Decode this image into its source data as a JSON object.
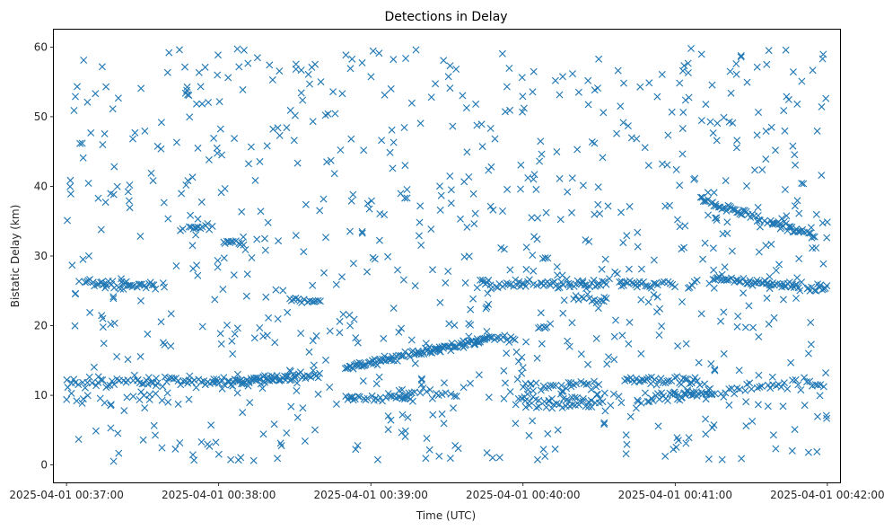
{
  "chart_data": {
    "type": "scatter",
    "title": "Detections in Delay",
    "xlabel": "Time (UTC)",
    "ylabel": "Bistatic Delay (km)",
    "marker": "x",
    "color": "#1f77b4",
    "grid": false,
    "x_axis": {
      "kind": "time",
      "range": [
        "2025-04-01 00:36:55",
        "2025-04-01 00:42:05"
      ],
      "ticks": [
        "2025-04-01 00:37:00",
        "2025-04-01 00:38:00",
        "2025-04-01 00:39:00",
        "2025-04-01 00:40:00",
        "2025-04-01 00:41:00",
        "2025-04-01 00:42:00"
      ]
    },
    "y_axis": {
      "range": [
        -2.5,
        62.5
      ],
      "ticks": [
        0,
        10,
        20,
        30,
        40,
        50,
        60
      ]
    },
    "tracks": [
      {
        "from": [
          "2025-04-01 00:37:00",
          11.8
        ],
        "to": [
          "2025-04-01 00:38:30",
          12.4
        ],
        "step_s": 0.9,
        "jitter": 0.35
      },
      {
        "from": [
          "2025-04-01 00:38:00",
          11.8
        ],
        "to": [
          "2025-04-01 00:38:40",
          13.0
        ],
        "step_s": 0.7,
        "jitter": 0.3
      },
      {
        "from": [
          "2025-04-01 00:38:50",
          14.0
        ],
        "to": [
          "2025-04-01 00:39:45",
          18.0
        ],
        "step_s": 0.5,
        "jitter": 0.25
      },
      {
        "from": [
          "2025-04-01 00:39:40",
          17.5
        ],
        "to": [
          "2025-04-01 00:39:57",
          18.5
        ],
        "step_s": 0.8,
        "jitter": 0.3
      },
      {
        "from": [
          "2025-04-01 00:37:05",
          26.2
        ],
        "to": [
          "2025-04-01 00:37:35",
          25.6
        ],
        "step_s": 0.6,
        "jitter": 0.3
      },
      {
        "from": [
          "2025-04-01 00:37:45",
          34.0
        ],
        "to": [
          "2025-04-01 00:37:58",
          34.2
        ],
        "step_s": 0.7,
        "jitter": 0.2
      },
      {
        "from": [
          "2025-04-01 00:38:02",
          32.0
        ],
        "to": [
          "2025-04-01 00:38:10",
          31.8
        ],
        "step_s": 0.6,
        "jitter": 0.2
      },
      {
        "from": [
          "2025-04-01 00:38:28",
          23.8
        ],
        "to": [
          "2025-04-01 00:38:40",
          23.6
        ],
        "step_s": 0.8,
        "jitter": 0.2
      },
      {
        "from": [
          "2025-04-01 00:38:50",
          9.5
        ],
        "to": [
          "2025-04-01 00:39:17",
          9.6
        ],
        "step_s": 0.8,
        "jitter": 0.3
      },
      {
        "from": [
          "2025-04-01 00:39:10",
          10.5
        ],
        "to": [
          "2025-04-01 00:39:35",
          10.2
        ],
        "step_s": 1.2,
        "jitter": 0.4
      },
      {
        "from": [
          "2025-04-01 00:39:43",
          26.2
        ],
        "to": [
          "2025-04-01 00:40:33",
          26.0
        ],
        "step_s": 0.7,
        "jitter": 0.3
      },
      {
        "from": [
          "2025-04-01 00:40:06",
          19.5
        ],
        "to": [
          "2025-04-01 00:40:12",
          20.2
        ],
        "step_s": 0.7,
        "jitter": 0.2
      },
      {
        "from": [
          "2025-04-01 00:39:55",
          9.8
        ],
        "to": [
          "2025-04-01 00:40:40",
          9.6
        ],
        "step_s": 1.1,
        "jitter": 0.5
      },
      {
        "from": [
          "2025-04-01 00:40:00",
          11.2
        ],
        "to": [
          "2025-04-01 00:40:30",
          11.6
        ],
        "step_s": 1.0,
        "jitter": 0.4
      },
      {
        "from": [
          "2025-04-01 00:40:00",
          8.3
        ],
        "to": [
          "2025-04-01 00:40:30",
          8.8
        ],
        "step_s": 1.3,
        "jitter": 0.3
      },
      {
        "from": [
          "2025-04-01 00:40:20",
          23.8
        ],
        "to": [
          "2025-04-01 00:40:33",
          23.6
        ],
        "step_s": 1.0,
        "jitter": 0.3
      },
      {
        "from": [
          "2025-04-01 00:40:38",
          26.2
        ],
        "to": [
          "2025-04-01 00:40:59",
          25.8
        ],
        "step_s": 0.8,
        "jitter": 0.3
      },
      {
        "from": [
          "2025-04-01 00:40:40",
          12.2
        ],
        "to": [
          "2025-04-01 00:41:10",
          12.0
        ],
        "step_s": 0.8,
        "jitter": 0.3
      },
      {
        "from": [
          "2025-04-01 00:40:45",
          9.5
        ],
        "to": [
          "2025-04-01 00:41:15",
          10.5
        ],
        "step_s": 0.8,
        "jitter": 0.3
      },
      {
        "from": [
          "2025-04-01 00:41:05",
          25.5
        ],
        "to": [
          "2025-04-01 00:41:12",
          27.5
        ],
        "step_s": 0.9,
        "jitter": 0.3
      },
      {
        "from": [
          "2025-04-01 00:41:10",
          38.3
        ],
        "to": [
          "2025-04-01 00:41:55",
          32.8
        ],
        "step_s": 0.6,
        "jitter": 0.25
      },
      {
        "from": [
          "2025-04-01 00:41:15",
          26.8
        ],
        "to": [
          "2025-04-01 00:41:50",
          25.6
        ],
        "step_s": 0.6,
        "jitter": 0.25
      },
      {
        "from": [
          "2025-04-01 00:41:52",
          25.5
        ],
        "to": [
          "2025-04-01 00:42:00",
          25.2
        ],
        "step_s": 0.6,
        "jitter": 0.3
      },
      {
        "from": [
          "2025-04-01 00:41:20",
          10.8
        ],
        "to": [
          "2025-04-01 00:42:00",
          12.0
        ],
        "step_s": 1.1,
        "jitter": 0.5
      },
      {
        "from": [
          "2025-04-01 00:41:00",
          10.0
        ],
        "to": [
          "2025-04-01 00:41:20",
          10.3
        ],
        "step_s": 1.2,
        "jitter": 0.3
      },
      {
        "from": [
          "2025-04-01 00:37:00",
          9.5
        ],
        "to": [
          "2025-04-01 00:37:40",
          10.0
        ],
        "step_s": 2.2,
        "jitter": 0.5
      }
    ],
    "noise": {
      "count": 820,
      "x_range": [
        "2025-04-01 00:37:00",
        "2025-04-01 00:42:00"
      ],
      "y_range": [
        0.5,
        59.8
      ]
    }
  }
}
